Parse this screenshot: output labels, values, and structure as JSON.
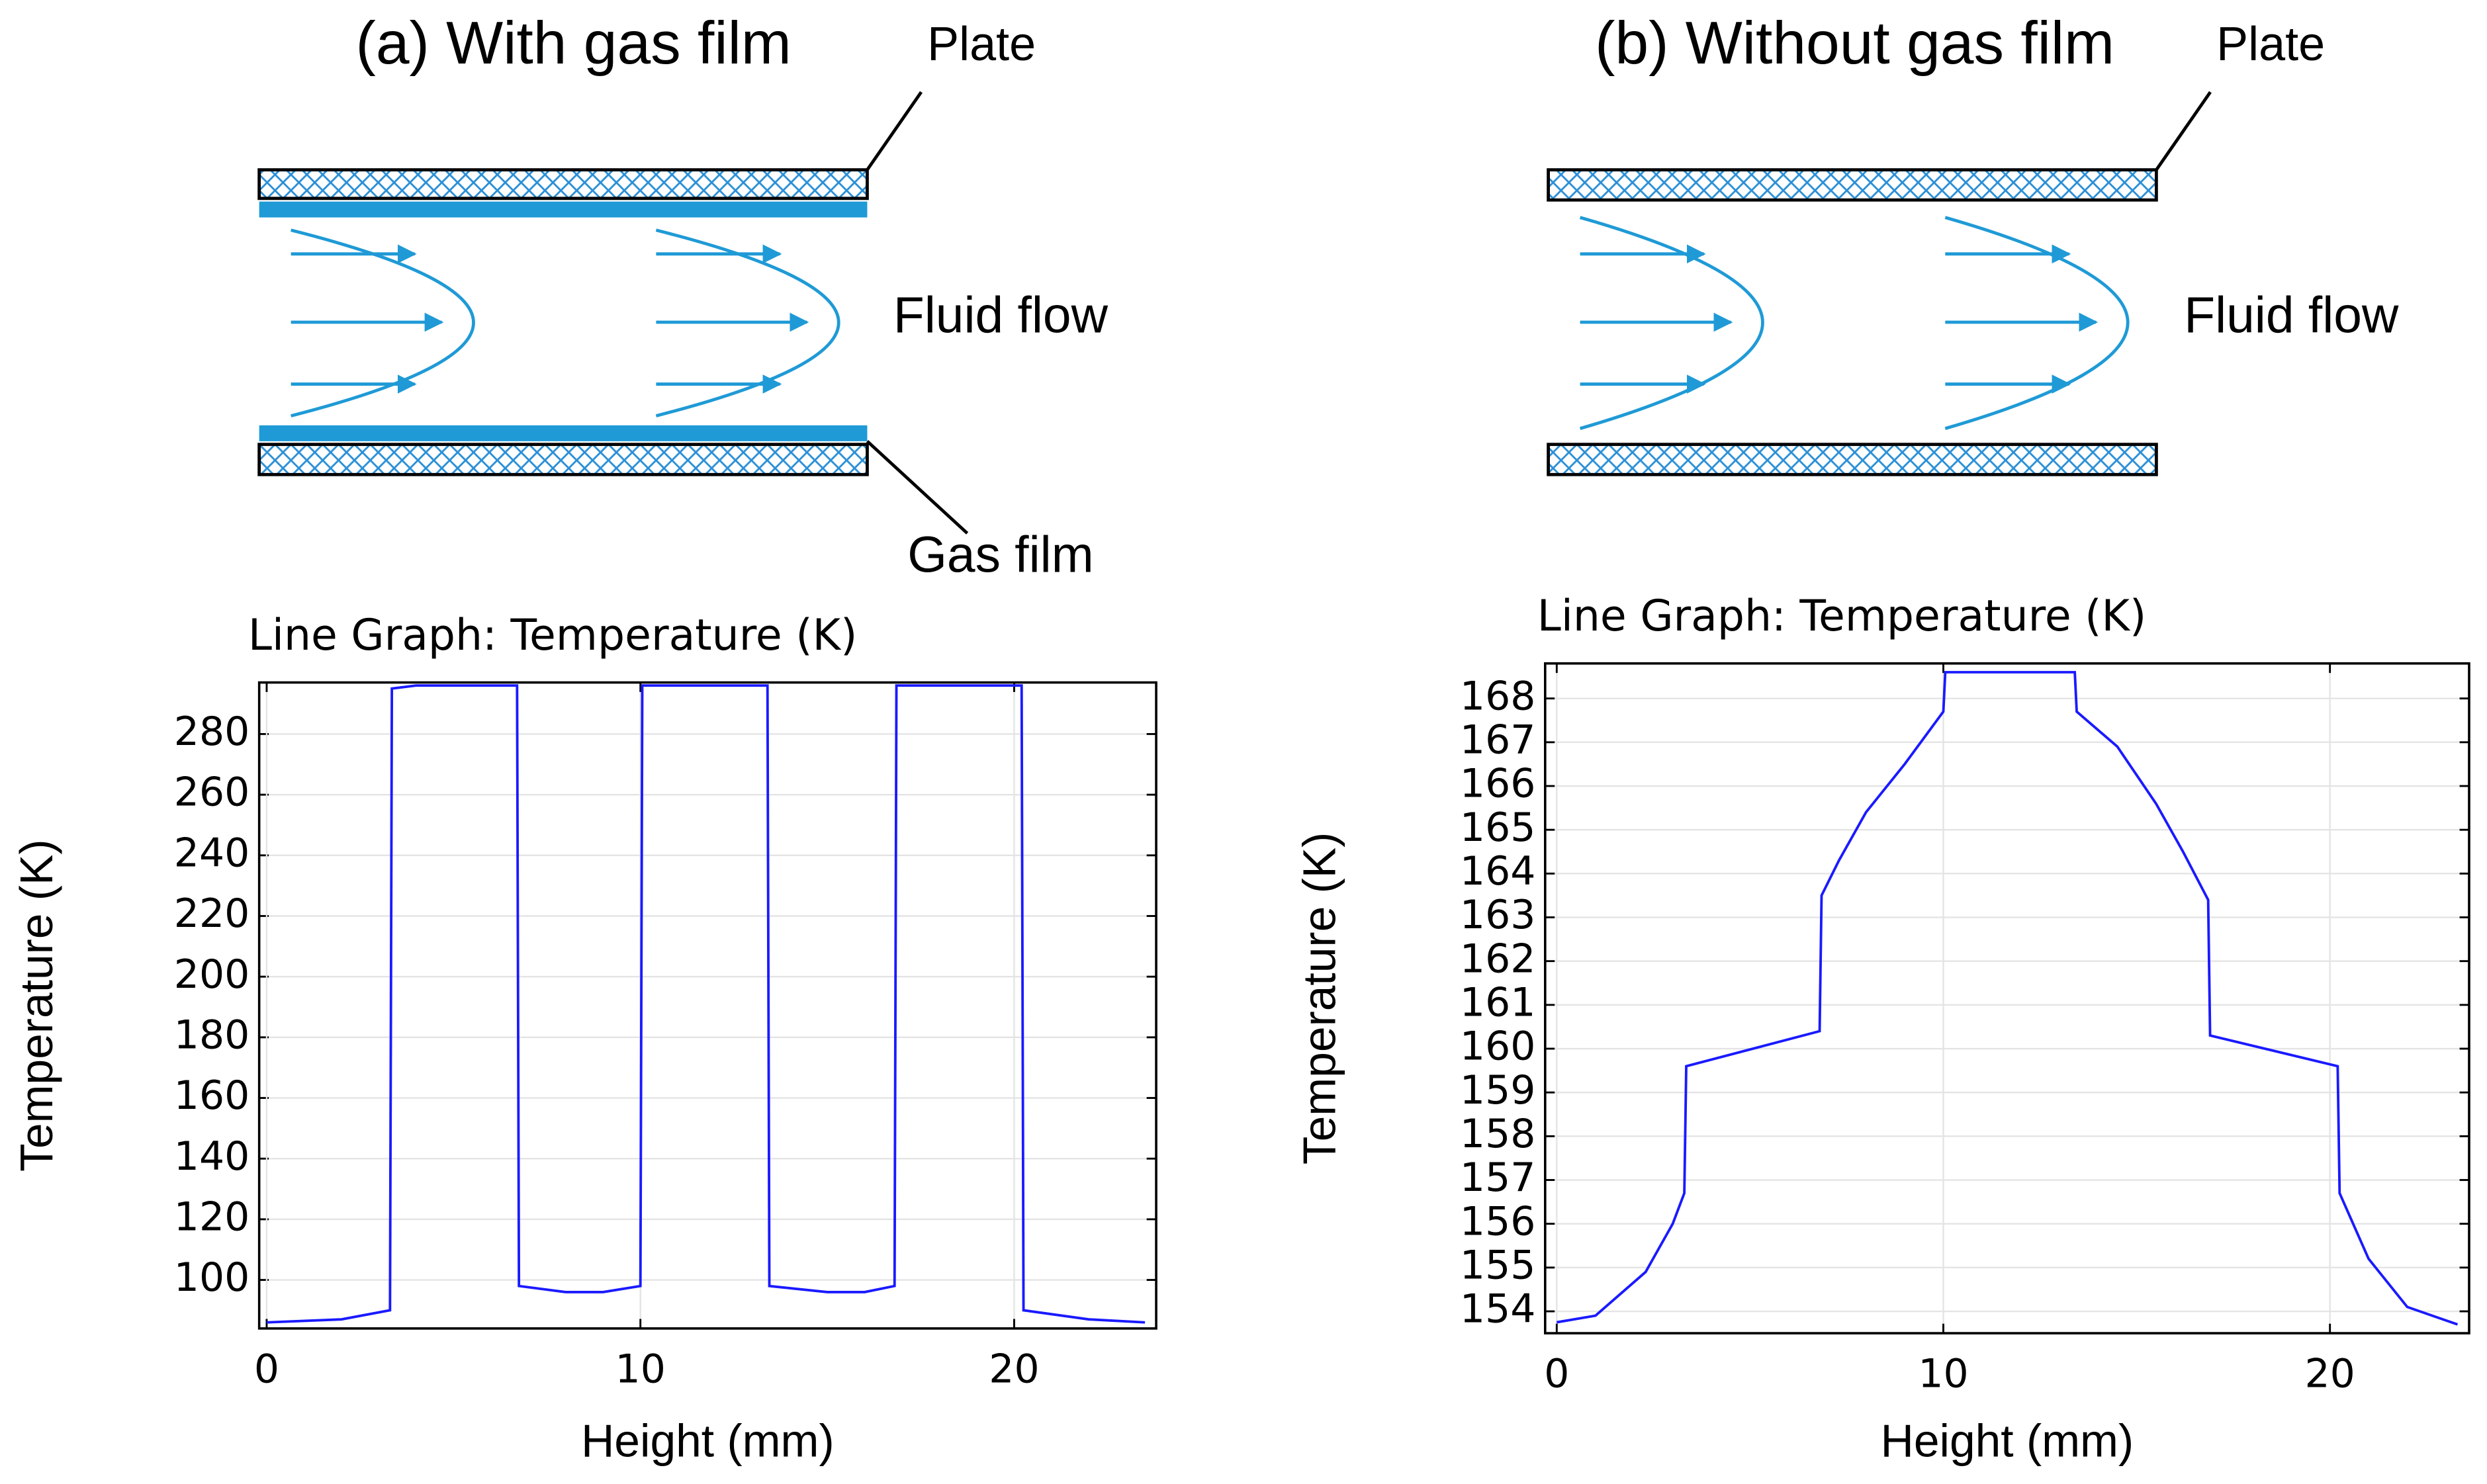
{
  "panels": [
    {
      "title": "(a) With gas film",
      "plate_label": "Plate",
      "flow_label": "Fluid flow",
      "film_label": "Gas film"
    },
    {
      "title": "(b) Without gas film",
      "plate_label": "Plate",
      "flow_label": "Fluid flow"
    }
  ],
  "chart_data": [
    {
      "type": "line",
      "title": "Line Graph: Temperature (K)",
      "x_label": "Height (mm)",
      "y_label": "Temperature (K)",
      "x": [
        0,
        2,
        3.3,
        3.35,
        4,
        6.7,
        6.75,
        8,
        9,
        10,
        10.05,
        13.4,
        13.45,
        15,
        16,
        16.8,
        16.85,
        20.2,
        20.25,
        22,
        23.5
      ],
      "series": [
        {
          "name": "Temperature",
          "color": "#1a1aff",
          "values": [
            86,
            87,
            90,
            295,
            296,
            296,
            98,
            96,
            96,
            98,
            296,
            296,
            98,
            96,
            96,
            98,
            296,
            296,
            90,
            87,
            86
          ]
        }
      ],
      "xlim": [
        -0.2,
        23.8
      ],
      "ylim": [
        84,
        297
      ],
      "xticks": [
        0,
        10,
        20
      ],
      "yticks": [
        100,
        120,
        140,
        160,
        180,
        200,
        220,
        240,
        260,
        280
      ],
      "grid": true
    },
    {
      "type": "line",
      "title": "Line Graph: Temperature (K)",
      "x_label": "Height (mm)",
      "y_label": "Temperature (K)",
      "x": [
        0,
        1,
        2.3,
        3,
        3.3,
        3.35,
        6.8,
        6.85,
        7.3,
        8,
        9,
        10,
        10.05,
        13.4,
        13.45,
        14.5,
        15.5,
        16.2,
        16.85,
        16.9,
        20.2,
        20.25,
        21,
        22,
        23.3
      ],
      "series": [
        {
          "name": "Temperature",
          "color": "#1a1aff",
          "values": [
            153.75,
            153.9,
            154.9,
            156,
            156.7,
            159.6,
            160.4,
            163.5,
            164.3,
            165.4,
            166.5,
            167.7,
            168.6,
            168.6,
            167.7,
            166.9,
            165.6,
            164.5,
            163.4,
            160.3,
            159.6,
            156.7,
            155.2,
            154.1,
            153.7
          ]
        }
      ],
      "xlim": [
        -0.3,
        23.6
      ],
      "ylim": [
        153.5,
        168.8
      ],
      "xticks": [
        0,
        10,
        20
      ],
      "yticks": [
        154,
        155,
        156,
        157,
        158,
        159,
        160,
        161,
        162,
        163,
        164,
        165,
        166,
        167,
        168
      ],
      "grid": true
    }
  ]
}
